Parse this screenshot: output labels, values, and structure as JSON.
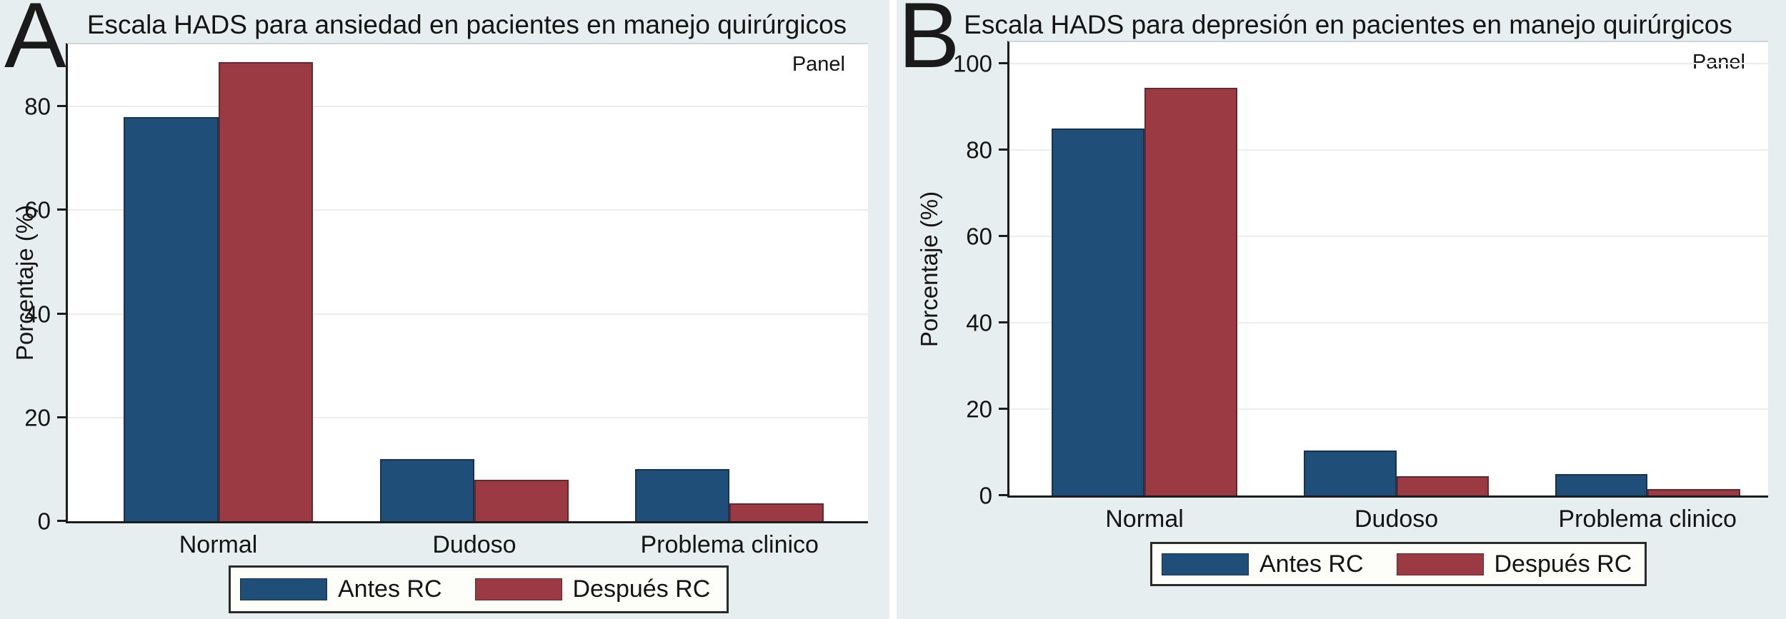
{
  "figure": {
    "background_color": "#e7eef0",
    "plot_background_color": "#ffffff",
    "accent_colors": {
      "antes_rc": "#1f4e79",
      "despues_rc": "#9c3a44"
    }
  },
  "chart_data": [
    {
      "type": "bar",
      "panel_letter": "A",
      "title": "Escala HADS para ansiedad en pacientes en manejo quirúrgicos",
      "corner_note": "Panel",
      "ylabel": "Porcentaje (%)",
      "xlabel": "",
      "categories": [
        "Normal",
        "Dudoso",
        "Problema clinico"
      ],
      "series": [
        {
          "name": "Antes RC",
          "color": "#1f4e79",
          "values": [
            78,
            12,
            10
          ]
        },
        {
          "name": "Después RC",
          "color": "#9c3a44",
          "values": [
            88.5,
            8,
            3.5
          ]
        }
      ],
      "yticks": [
        0,
        20,
        40,
        60,
        80
      ],
      "ylim": [
        0,
        92
      ],
      "grid": true,
      "legend_position": "bottom"
    },
    {
      "type": "bar",
      "panel_letter": "B",
      "title": "Escala HADS para depresión en pacientes en manejo quirúrgicos",
      "corner_note": "Panel",
      "ylabel": "Porcentaje (%)",
      "xlabel": "",
      "categories": [
        "Normal",
        "Dudoso",
        "Problema clinico"
      ],
      "series": [
        {
          "name": "Antes RC",
          "color": "#1f4e79",
          "values": [
            85,
            10.5,
            5
          ]
        },
        {
          "name": "Después RC",
          "color": "#9c3a44",
          "values": [
            94.5,
            4.5,
            1.5
          ]
        }
      ],
      "yticks": [
        0,
        20,
        40,
        60,
        80,
        100
      ],
      "ylim": [
        0,
        105
      ],
      "grid": true,
      "legend_position": "bottom"
    }
  ]
}
